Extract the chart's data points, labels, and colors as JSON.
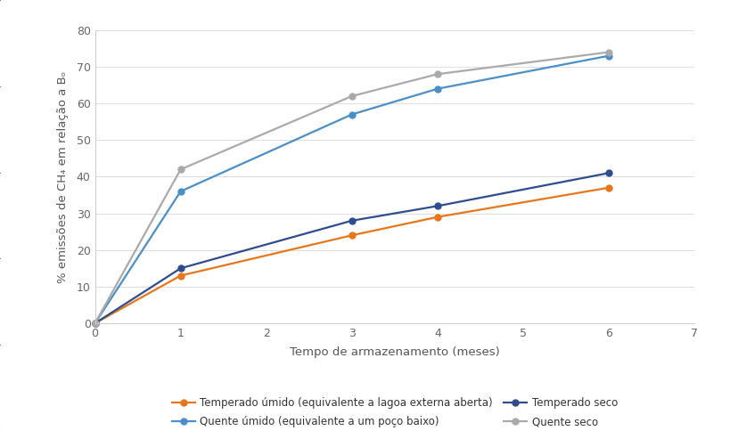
{
  "x": [
    0,
    1,
    3,
    4,
    6
  ],
  "series": [
    {
      "label": "Temperado úmido (equivalente a lagoa externa aberta)",
      "color": "#E8761A",
      "values": [
        0,
        13,
        24,
        29,
        37
      ],
      "marker": "o",
      "linestyle": "-"
    },
    {
      "label": "Quente úmido (equivalente a um poço baixo)",
      "color": "#4B8FC7",
      "values": [
        0,
        36,
        57,
        64,
        73
      ],
      "marker": "o",
      "linestyle": "-"
    },
    {
      "label": "Temperado seco",
      "color": "#2E4D8F",
      "values": [
        0,
        15,
        28,
        32,
        41
      ],
      "marker": "o",
      "linestyle": "-"
    },
    {
      "label": "Quente seco",
      "color": "#AAAAAA",
      "values": [
        0,
        42,
        62,
        68,
        74
      ],
      "marker": "o",
      "linestyle": "-"
    }
  ],
  "xlabel": "Tempo de armazenamento (meses)",
  "ylabel": "% emissões de CH₄ em relação a Bₒ",
  "xlim": [
    0,
    7
  ],
  "ylim": [
    0,
    80
  ],
  "xticks": [
    0,
    1,
    2,
    3,
    4,
    5,
    6,
    7
  ],
  "yticks": [
    0,
    10,
    20,
    30,
    40,
    50,
    60,
    70,
    80
  ],
  "background_color": "#FFFFFF",
  "figsize": [
    8.2,
    4.84
  ],
  "dpi": 100
}
